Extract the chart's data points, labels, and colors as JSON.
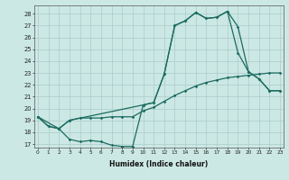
{
  "xlabel": "Humidex (Indice chaleur)",
  "background_color": "#cce8e4",
  "grid_color": "#aaccca",
  "line_color": "#1a6b60",
  "yticks": [
    17,
    18,
    19,
    20,
    21,
    22,
    23,
    24,
    25,
    26,
    27,
    28
  ],
  "xticks": [
    0,
    1,
    2,
    3,
    4,
    5,
    6,
    7,
    8,
    9,
    10,
    11,
    12,
    13,
    14,
    15,
    16,
    17,
    18,
    19,
    20,
    21,
    22,
    23
  ],
  "line1_x": [
    0,
    1,
    2,
    3,
    4,
    5,
    6,
    7,
    8,
    9,
    10,
    11,
    12,
    13,
    14,
    15,
    16,
    17,
    18,
    19,
    20,
    21,
    22,
    23
  ],
  "line1_y": [
    19.3,
    18.5,
    18.3,
    17.4,
    17.2,
    17.3,
    17.2,
    16.9,
    16.8,
    16.8,
    20.3,
    20.5,
    22.9,
    27.0,
    27.4,
    28.1,
    27.6,
    27.7,
    28.2,
    24.7,
    23.1,
    22.5,
    21.5,
    21.5
  ],
  "line2_x": [
    0,
    1,
    2,
    3,
    4,
    5,
    6,
    7,
    8,
    9,
    10,
    11,
    12,
    13,
    14,
    15,
    16,
    17,
    18,
    19,
    20,
    21,
    22,
    23
  ],
  "line2_y": [
    19.3,
    18.5,
    18.3,
    19.0,
    19.2,
    19.2,
    19.2,
    19.3,
    19.3,
    19.3,
    19.8,
    20.1,
    20.6,
    21.1,
    21.5,
    21.9,
    22.2,
    22.4,
    22.6,
    22.7,
    22.8,
    22.9,
    23.0,
    23.0
  ],
  "line3_x": [
    0,
    2,
    3,
    10,
    11,
    12,
    13,
    14,
    15,
    16,
    17,
    18,
    19,
    20,
    21,
    22,
    23
  ],
  "line3_y": [
    19.3,
    18.3,
    19.0,
    20.3,
    20.5,
    22.9,
    27.0,
    27.4,
    28.1,
    27.6,
    27.7,
    28.2,
    26.9,
    23.1,
    22.5,
    21.5,
    21.5
  ]
}
